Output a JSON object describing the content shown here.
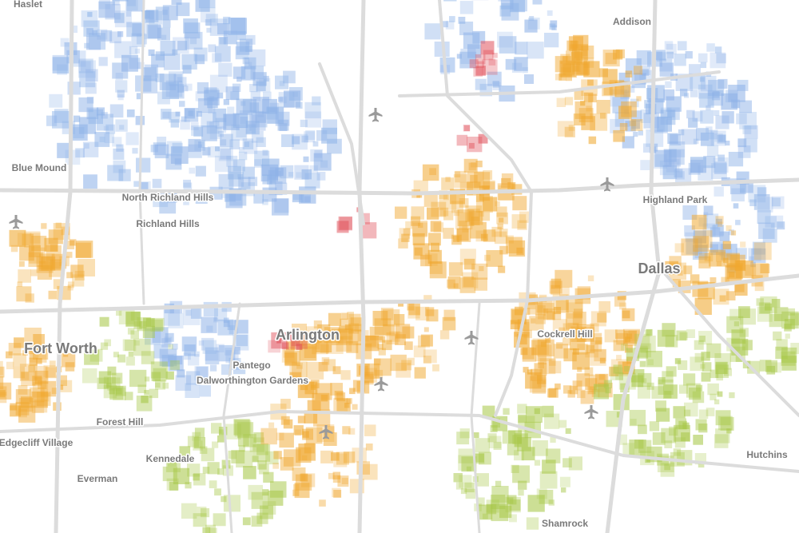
{
  "places": [
    "Haslet",
    "Addison",
    "Blue Mound",
    "North Richland Hills",
    "Richland Hills",
    "Highland Park",
    "Dallas",
    "Arlington",
    "Fort Worth",
    "Cockrell Hill",
    "Pantego",
    "Dalworthington Gardens",
    "Forest Hill",
    "Edgecliff Village",
    "Kennedale",
    "Hutchins",
    "Everman",
    "Shamrock"
  ]
}
